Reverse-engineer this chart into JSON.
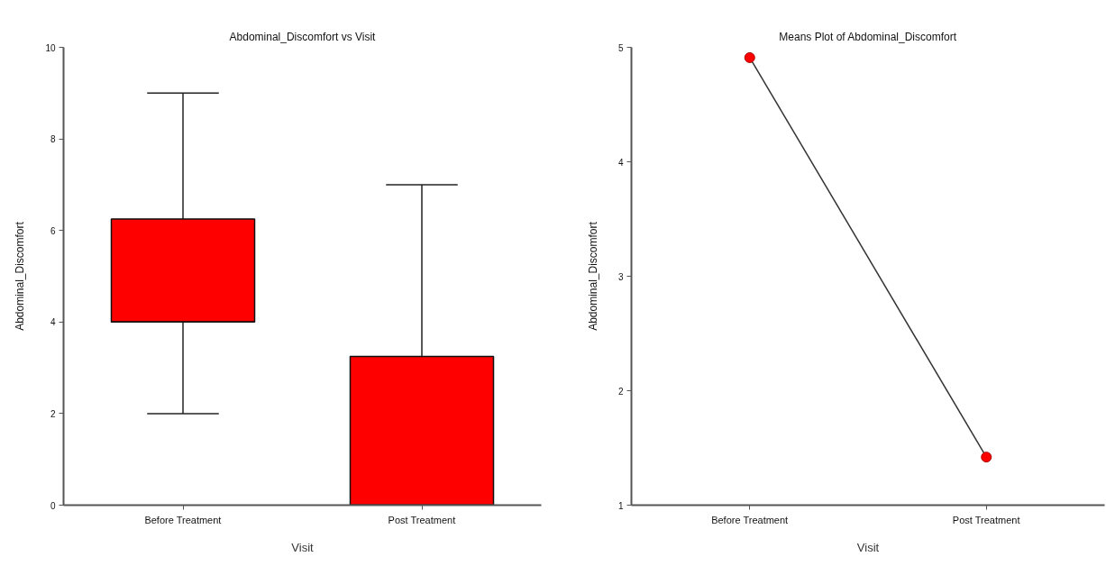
{
  "chart_data": [
    {
      "type": "box",
      "title": "Abdominal_Discomfort vs Visit",
      "xlabel": "Visit",
      "ylabel": "Abdominal_Discomfort",
      "categories": [
        "Before Treatment",
        "Post Treatment"
      ],
      "color": "#ff0000",
      "boxes": [
        {
          "low": 2,
          "q1": 4,
          "median": 4,
          "q3": 6.25,
          "high": 9
        },
        {
          "low": 0,
          "q1": 0,
          "median": 0,
          "q3": 3.25,
          "high": 7
        }
      ],
      "ylim": [
        0,
        10
      ],
      "yticks": [
        0,
        2,
        4,
        6,
        8,
        10
      ],
      "grid": false
    },
    {
      "type": "line",
      "title": "Means Plot of Abdominal_Discomfort",
      "xlabel": "Visit",
      "ylabel": "Abdominal_Discomfort",
      "categories": [
        "Before Treatment",
        "Post Treatment"
      ],
      "values": [
        4.91,
        1.42
      ],
      "color": "#ff0000",
      "marker": "circle",
      "line_style": "solid",
      "ylim": [
        1,
        5
      ],
      "yticks": [
        1,
        2,
        3,
        4,
        5
      ],
      "grid": false
    }
  ]
}
